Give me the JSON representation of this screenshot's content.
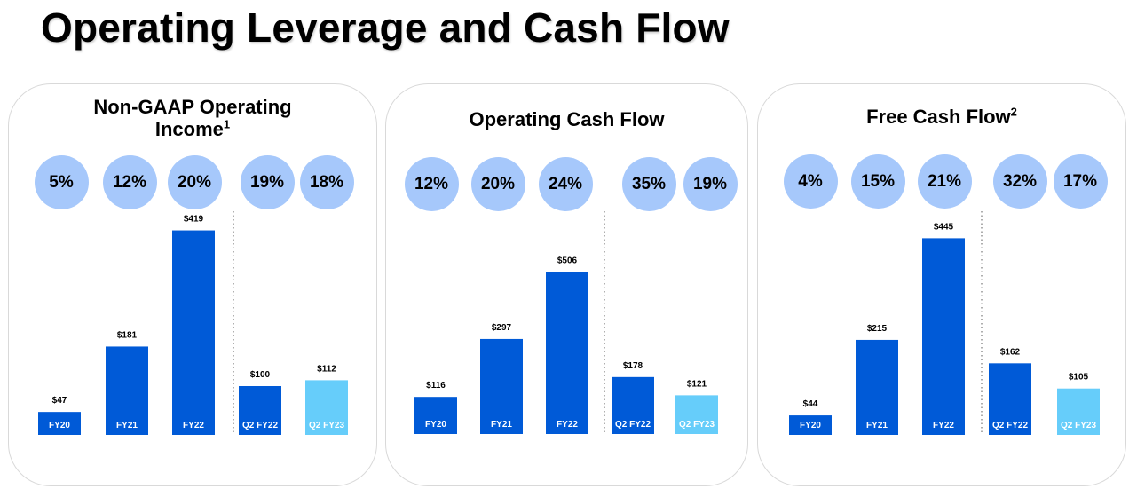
{
  "page_title": "Operating Leverage and Cash Flow",
  "colors": {
    "bar_primary": "#005ad7",
    "bar_highlight": "#66cdfa",
    "circle": "#a6c8fb",
    "divider": "#8c8c8c"
  },
  "chart_data": [
    {
      "type": "bar",
      "title": "Non-GAAP Operating Income",
      "title_line1": "Non-GAAP Operating",
      "title_line2": "Income",
      "footnote": "1",
      "categories": [
        "FY20",
        "FY21",
        "FY22",
        "Q2 FY22",
        "Q2 FY23"
      ],
      "values": [
        47,
        181,
        419,
        100,
        112
      ],
      "value_labels": [
        "$47",
        "$181",
        "$419",
        "$100",
        "$112"
      ],
      "margins": [
        "5%",
        "12%",
        "20%",
        "19%",
        "18%"
      ],
      "highlight_index": 4
    },
    {
      "type": "bar",
      "title": "Operating Cash Flow",
      "categories": [
        "FY20",
        "FY21",
        "FY22",
        "Q2 FY22",
        "Q2 FY23"
      ],
      "values": [
        116,
        297,
        506,
        178,
        121
      ],
      "value_labels": [
        "$116",
        "$297",
        "$506",
        "$178",
        "$121"
      ],
      "margins": [
        "12%",
        "20%",
        "24%",
        "35%",
        "19%"
      ],
      "highlight_index": 4
    },
    {
      "type": "bar",
      "title": "Free Cash Flow",
      "footnote": "2",
      "categories": [
        "FY20",
        "FY21",
        "FY22",
        "Q2 FY22",
        "Q2 FY23"
      ],
      "values": [
        44,
        215,
        445,
        162,
        105
      ],
      "value_labels": [
        "$44",
        "$215",
        "$445",
        "$162",
        "$105"
      ],
      "margins": [
        "4%",
        "15%",
        "21%",
        "32%",
        "17%"
      ],
      "highlight_index": 4
    }
  ]
}
